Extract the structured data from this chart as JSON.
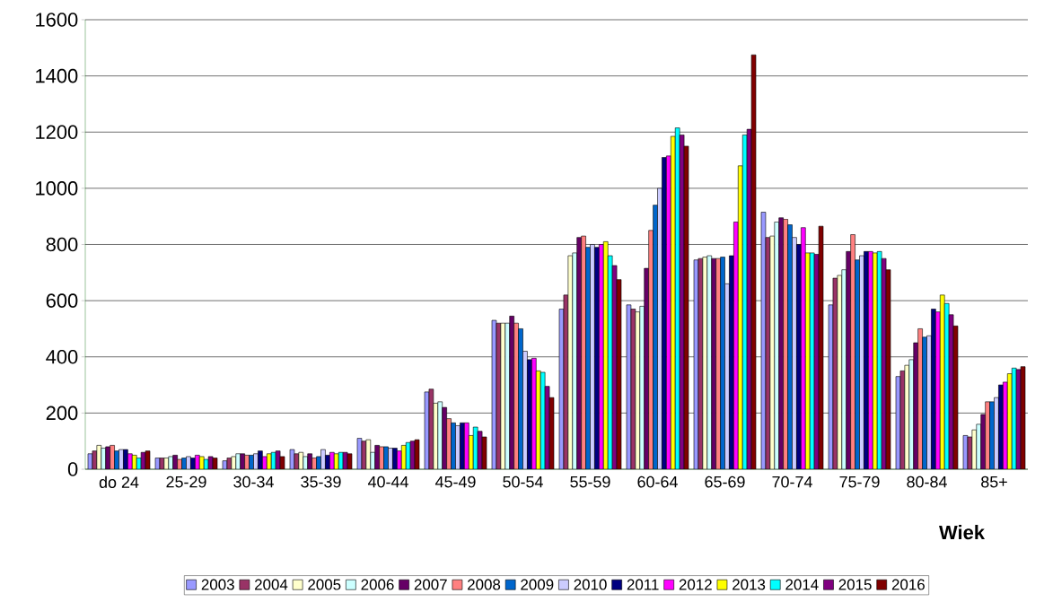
{
  "chart_data": {
    "type": "bar",
    "xlabel": "Wiek",
    "categories": [
      "do 24",
      "25-29",
      "30-34",
      "35-39",
      "40-44",
      "45-49",
      "50-54",
      "55-59",
      "60-64",
      "65-69",
      "70-74",
      "75-79",
      "80-84",
      "85+"
    ],
    "ylim": [
      0,
      1600
    ],
    "yticks": [
      0,
      200,
      400,
      600,
      800,
      1000,
      1200,
      1400,
      1600
    ],
    "grid": "y",
    "legend": "bottom",
    "series": [
      {
        "name": "2003",
        "color": "#9999ff",
        "values": [
          55,
          40,
          30,
          70,
          110,
          275,
          530,
          570,
          585,
          745,
          915,
          585,
          330,
          120
        ]
      },
      {
        "name": "2004",
        "color": "#993366",
        "values": [
          65,
          40,
          40,
          55,
          100,
          285,
          520,
          620,
          570,
          750,
          825,
          680,
          350,
          115
        ]
      },
      {
        "name": "2005",
        "color": "#ffffcc",
        "values": [
          85,
          40,
          45,
          60,
          105,
          235,
          520,
          760,
          560,
          755,
          830,
          690,
          370,
          140
        ]
      },
      {
        "name": "2006",
        "color": "#ccffff",
        "values": [
          75,
          45,
          55,
          45,
          60,
          240,
          520,
          770,
          580,
          760,
          880,
          710,
          390,
          160
        ]
      },
      {
        "name": "2007",
        "color": "#660066",
        "values": [
          80,
          50,
          55,
          55,
          85,
          220,
          545,
          825,
          715,
          750,
          895,
          775,
          450,
          195
        ]
      },
      {
        "name": "2008",
        "color": "#ff8080",
        "values": [
          85,
          35,
          50,
          40,
          80,
          180,
          520,
          830,
          850,
          750,
          890,
          835,
          500,
          240
        ]
      },
      {
        "name": "2009",
        "color": "#0066cc",
        "values": [
          65,
          40,
          50,
          45,
          80,
          165,
          500,
          790,
          940,
          755,
          870,
          745,
          470,
          240
        ]
      },
      {
        "name": "2010",
        "color": "#ccccff",
        "values": [
          70,
          45,
          55,
          70,
          75,
          155,
          420,
          800,
          1000,
          660,
          825,
          760,
          475,
          255
        ]
      },
      {
        "name": "2011",
        "color": "#000080",
        "values": [
          70,
          40,
          65,
          50,
          75,
          165,
          390,
          790,
          1110,
          760,
          800,
          775,
          570,
          300
        ]
      },
      {
        "name": "2012",
        "color": "#ff00ff",
        "values": [
          55,
          50,
          45,
          60,
          65,
          165,
          395,
          800,
          1115,
          880,
          860,
          775,
          560,
          310
        ]
      },
      {
        "name": "2013",
        "color": "#ffff00",
        "values": [
          50,
          45,
          55,
          55,
          85,
          120,
          350,
          810,
          1185,
          1080,
          770,
          770,
          620,
          340
        ]
      },
      {
        "name": "2014",
        "color": "#00ffff",
        "values": [
          40,
          35,
          60,
          60,
          95,
          150,
          345,
          760,
          1215,
          1190,
          770,
          775,
          590,
          360
        ]
      },
      {
        "name": "2015",
        "color": "#800080",
        "values": [
          60,
          45,
          65,
          60,
          100,
          135,
          295,
          725,
          1190,
          1210,
          765,
          750,
          550,
          355
        ]
      },
      {
        "name": "2016",
        "color": "#800000",
        "values": [
          65,
          40,
          45,
          55,
          105,
          115,
          255,
          675,
          1150,
          1475,
          865,
          710,
          510,
          365
        ]
      }
    ]
  }
}
